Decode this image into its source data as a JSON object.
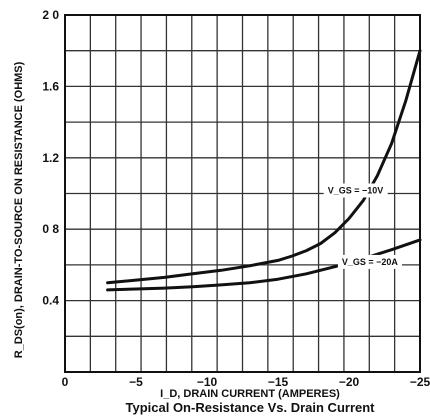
{
  "chart_data": {
    "type": "line",
    "title": "Typical On-Resistance Vs. Drain Current",
    "xlabel": "I_D, DRAIN CURRENT (AMPERES)",
    "ylabel": "R_DS(on), DRAIN-TO-SOURCE ON RESISTANCE (OHMS)",
    "xlim": [
      0,
      -25
    ],
    "ylim": [
      0,
      2.0
    ],
    "x_ticks": [
      {
        "v": 0,
        "label": "0"
      },
      {
        "v": -5,
        "label": "−5"
      },
      {
        "v": -10,
        "label": "−10"
      },
      {
        "v": -15,
        "label": "−15"
      },
      {
        "v": -20,
        "label": "−20"
      },
      {
        "v": -25,
        "label": "−25"
      }
    ],
    "y_ticks": [
      {
        "v": 0.4,
        "label": "0.4"
      },
      {
        "v": 0.8,
        "label": "0 8"
      },
      {
        "v": 1.2,
        "label": "1.2"
      },
      {
        "v": 1.6,
        "label": "1.6"
      },
      {
        "v": 2.0,
        "label": "2 0"
      }
    ],
    "grid": true,
    "series": [
      {
        "name": "V_GS = −10V",
        "annotation": {
          "x": -18.5,
          "y": 1.0
        },
        "x": [
          -3,
          -5,
          -7,
          -9,
          -11,
          -13,
          -15,
          -16,
          -17,
          -18,
          -19,
          -20,
          -21,
          -22,
          -23,
          -24,
          -25
        ],
        "y": [
          0.5,
          0.515,
          0.53,
          0.55,
          0.57,
          0.595,
          0.625,
          0.65,
          0.68,
          0.72,
          0.78,
          0.86,
          0.96,
          1.1,
          1.28,
          1.52,
          1.8
        ]
      },
      {
        "name": "V_GS = −20A",
        "annotation": {
          "x": -19.5,
          "y": 0.6
        },
        "x": [
          -3,
          -5,
          -7,
          -9,
          -11,
          -13,
          -15,
          -17,
          -19,
          -21,
          -23,
          -25
        ],
        "y": [
          0.46,
          0.465,
          0.47,
          0.478,
          0.488,
          0.5,
          0.52,
          0.55,
          0.59,
          0.635,
          0.685,
          0.74
        ]
      }
    ]
  }
}
